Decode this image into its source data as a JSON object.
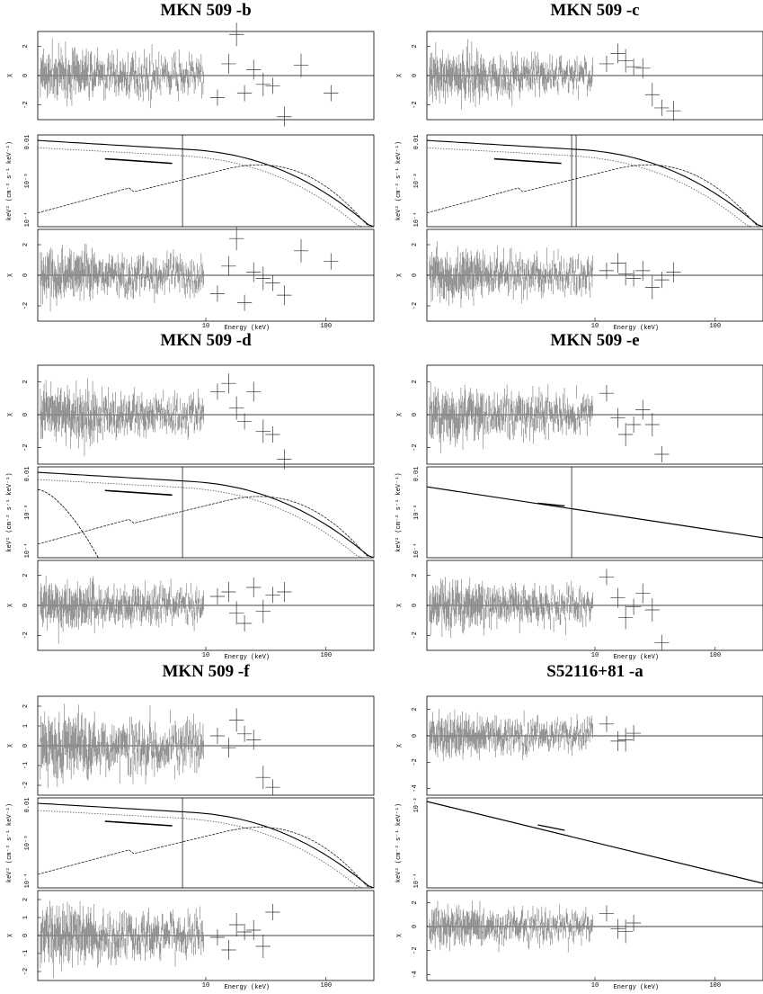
{
  "chart_data": [
    {
      "type": "scatter",
      "title": "MKN 509 -b",
      "xlabel": "Energy (keV)",
      "x_ticks": [
        "10",
        "100"
      ],
      "log_x": true,
      "panels": [
        {
          "role": "residual",
          "ylabel": "χ",
          "yticks": [
            "2",
            "0",
            "-2"
          ],
          "ylim": [
            -3,
            3
          ],
          "high_energy_points": [
            [
              12.5,
              -1.5
            ],
            [
              15.5,
              0.8
            ],
            [
              18,
              2.8
            ],
            [
              21,
              -1.2
            ],
            [
              25,
              0.4
            ],
            [
              30,
              -0.6
            ],
            [
              36,
              -0.7
            ],
            [
              45,
              -2.8
            ],
            [
              62,
              0.7
            ],
            [
              110,
              -1.2
            ]
          ]
        },
        {
          "role": "model",
          "ylabel": "keV² (cm⁻² s⁻¹ keV⁻¹)",
          "yticks": [
            "0.01",
            "10⁻³",
            "10⁻⁴"
          ],
          "log_y": true,
          "edge_keV": 6.4
        },
        {
          "role": "residual",
          "ylabel": "χ",
          "yticks": [
            "2",
            "0",
            "-2"
          ],
          "ylim": [
            -3,
            3
          ],
          "high_energy_points": [
            [
              12.5,
              -1.2
            ],
            [
              15.5,
              0.6
            ],
            [
              18,
              2.4
            ],
            [
              21,
              -1.8
            ],
            [
              25,
              0.2
            ],
            [
              30,
              -0.2
            ],
            [
              36,
              -0.5
            ],
            [
              45,
              -1.3
            ],
            [
              62,
              1.6
            ],
            [
              110,
              0.9
            ]
          ]
        }
      ]
    },
    {
      "type": "scatter",
      "title": "MKN 509 -c",
      "xlabel": "Energy (keV)",
      "x_ticks": [
        "10",
        "100"
      ],
      "log_x": true,
      "panels": [
        {
          "role": "residual",
          "ylabel": "χ",
          "yticks": [
            "2",
            "0",
            "-2"
          ],
          "ylim": [
            -3,
            3
          ],
          "high_energy_points": [
            [
              12.5,
              0.8
            ],
            [
              15.5,
              1.5
            ],
            [
              18,
              1.0
            ],
            [
              21,
              0.6
            ],
            [
              25,
              0.5
            ],
            [
              30,
              -1.3
            ],
            [
              36,
              -2.2
            ],
            [
              45,
              -2.4
            ]
          ]
        },
        {
          "role": "model",
          "ylabel": "keV² (cm⁻² s⁻¹ keV⁻¹)",
          "yticks": [
            "0.01",
            "10⁻³",
            "10⁻⁴"
          ],
          "log_y": true,
          "edge_keV": 6.4
        },
        {
          "role": "residual",
          "ylabel": "χ",
          "yticks": [
            "2",
            "0",
            "-2"
          ],
          "ylim": [
            -3,
            3
          ],
          "high_energy_points": [
            [
              12.5,
              0.3
            ],
            [
              15.5,
              0.8
            ],
            [
              18,
              0.1
            ],
            [
              21,
              -0.2
            ],
            [
              25,
              0.3
            ],
            [
              30,
              -0.8
            ],
            [
              36,
              -0.3
            ],
            [
              45,
              0.2
            ]
          ]
        }
      ]
    },
    {
      "type": "scatter",
      "title": "MKN 509 -d",
      "xlabel": "Energy (keV)",
      "x_ticks": [
        "10",
        "100"
      ],
      "log_x": true,
      "panels": [
        {
          "role": "residual",
          "ylabel": "χ",
          "yticks": [
            "2",
            "0",
            "-2"
          ],
          "ylim": [
            -3,
            3
          ],
          "high_energy_points": [
            [
              12.5,
              1.4
            ],
            [
              15.5,
              1.9
            ],
            [
              18,
              0.4
            ],
            [
              21,
              -0.4
            ],
            [
              25,
              1.4
            ],
            [
              30,
              -1.0
            ],
            [
              36,
              -1.2
            ],
            [
              45,
              -2.7
            ]
          ]
        },
        {
          "role": "model",
          "ylabel": "keV² (cm⁻² s⁻¹ keV⁻¹)",
          "yticks": [
            "0.01",
            "10⁻³",
            "10⁻⁴"
          ],
          "log_y": true,
          "edge_keV": 6.4
        },
        {
          "role": "residual",
          "ylabel": "χ",
          "yticks": [
            "2",
            "0",
            "-2"
          ],
          "ylim": [
            -3,
            3
          ],
          "high_energy_points": [
            [
              12.5,
              0.6
            ],
            [
              15.5,
              0.9
            ],
            [
              18,
              -0.5
            ],
            [
              21,
              -1.2
            ],
            [
              25,
              1.2
            ],
            [
              30,
              -0.4
            ],
            [
              36,
              0.7
            ],
            [
              45,
              0.9
            ]
          ]
        }
      ]
    },
    {
      "type": "scatter",
      "title": "MKN 509 -e",
      "xlabel": "Energy (keV)",
      "x_ticks": [
        "10",
        "100"
      ],
      "log_x": true,
      "panels": [
        {
          "role": "residual",
          "ylabel": "χ",
          "yticks": [
            "2",
            "0",
            "-2"
          ],
          "ylim": [
            -3,
            3
          ],
          "high_energy_points": [
            [
              12.5,
              1.3
            ],
            [
              15.5,
              -0.2
            ],
            [
              18,
              -1.2
            ],
            [
              21,
              -0.6
            ],
            [
              25,
              0.3
            ],
            [
              30,
              -0.6
            ],
            [
              36,
              -2.4
            ]
          ]
        },
        {
          "role": "model",
          "ylabel": "keV² (cm⁻² s⁻¹ keV⁻¹)",
          "yticks": [
            "0.01",
            "10⁻³",
            "10⁻⁴"
          ],
          "log_y": true,
          "edge_keV": 6.4
        },
        {
          "role": "residual",
          "ylabel": "χ",
          "yticks": [
            "2",
            "0",
            "-2"
          ],
          "ylim": [
            -3,
            3
          ],
          "high_energy_points": [
            [
              12.5,
              1.9
            ],
            [
              15.5,
              0.5
            ],
            [
              18,
              -0.8
            ],
            [
              21,
              -0.1
            ],
            [
              25,
              0.8
            ],
            [
              30,
              -0.3
            ],
            [
              36,
              -2.5
            ]
          ]
        }
      ]
    },
    {
      "type": "scatter",
      "title": "MKN 509 -f",
      "xlabel": "Energy (keV)",
      "x_ticks": [
        "10",
        "100"
      ],
      "log_x": true,
      "panels": [
        {
          "role": "residual",
          "ylabel": "χ",
          "yticks": [
            "2",
            "1",
            "0",
            "-1",
            "-2"
          ],
          "ylim": [
            -2.5,
            2.5
          ],
          "high_energy_points": [
            [
              12.5,
              0.5
            ],
            [
              15.5,
              -0.1
            ],
            [
              18,
              1.3
            ],
            [
              21,
              0.6
            ],
            [
              25,
              0.3
            ],
            [
              30,
              -1.6
            ],
            [
              36,
              -2.1
            ]
          ]
        },
        {
          "role": "model",
          "ylabel": "keV² (cm⁻² s⁻¹ keV⁻¹)",
          "yticks": [
            "0.01",
            "10⁻³",
            "10⁻⁴"
          ],
          "log_y": true,
          "edge_keV": 6.4
        },
        {
          "role": "residual",
          "ylabel": "χ",
          "yticks": [
            "2",
            "1",
            "0",
            "-1",
            "-2"
          ],
          "ylim": [
            -2.5,
            2.5
          ],
          "high_energy_points": [
            [
              12.5,
              -0.1
            ],
            [
              15.5,
              -0.8
            ],
            [
              18,
              0.6
            ],
            [
              21,
              0.2
            ],
            [
              25,
              0.3
            ],
            [
              30,
              -0.6
            ],
            [
              36,
              1.3
            ]
          ]
        }
      ]
    },
    {
      "type": "scatter",
      "title": "S52116+81 -a",
      "xlabel": "Energy (keV)",
      "x_ticks": [
        "10",
        "100"
      ],
      "log_x": true,
      "panels": [
        {
          "role": "residual",
          "ylabel": "χ",
          "yticks": [
            "2",
            "0",
            "-2",
            "-4"
          ],
          "ylim": [
            -4.5,
            3
          ],
          "high_energy_points": [
            [
              12.5,
              0.9
            ],
            [
              15.5,
              -0.4
            ],
            [
              18,
              -0.3
            ],
            [
              21,
              0.2
            ]
          ]
        },
        {
          "role": "model",
          "ylabel": "keV² (cm⁻² s⁻¹ keV⁻¹)",
          "yticks": [
            "10⁻³",
            "10⁻⁴"
          ],
          "log_y": true
        },
        {
          "role": "residual",
          "ylabel": "χ",
          "yticks": [
            "2",
            "0",
            "-2",
            "-4"
          ],
          "ylim": [
            -4.5,
            3
          ],
          "high_energy_points": [
            [
              12.5,
              1.1
            ],
            [
              15.5,
              -0.2
            ],
            [
              18,
              -0.4
            ],
            [
              21,
              0.3
            ]
          ]
        }
      ]
    }
  ]
}
